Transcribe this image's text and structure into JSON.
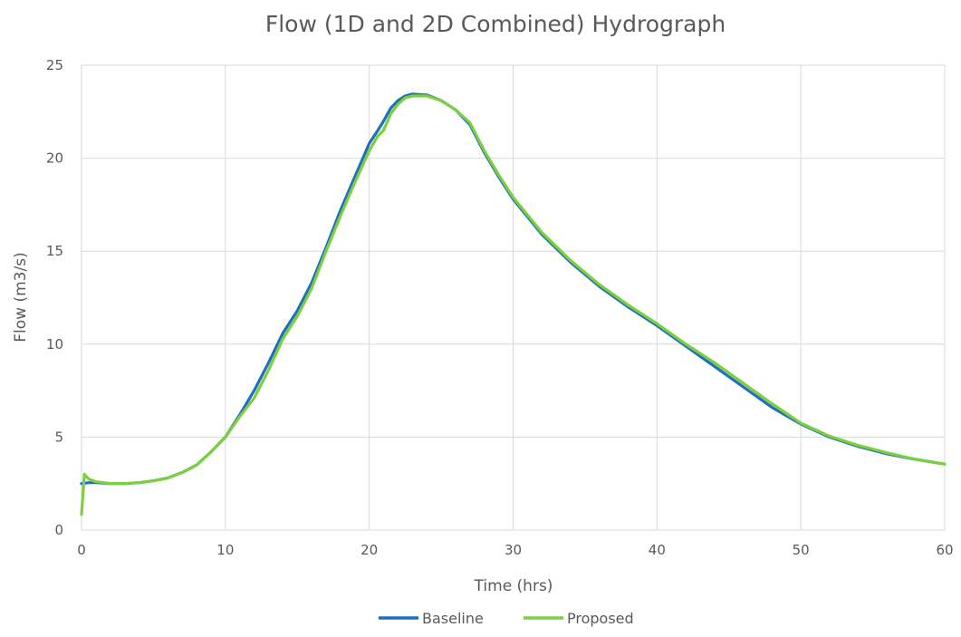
{
  "chart_data": {
    "type": "line",
    "title": "Flow (1D and 2D Combined) Hydrograph",
    "xlabel": "Time (hrs)",
    "ylabel": "Flow (m3/s)",
    "xlim": [
      0,
      60
    ],
    "ylim": [
      0,
      25
    ],
    "xticks": [
      0,
      10,
      20,
      30,
      40,
      50,
      60
    ],
    "yticks": [
      0,
      5,
      10,
      15,
      20,
      25
    ],
    "xtick_labels": [
      "0",
      "10",
      "20",
      "30",
      "40",
      "50",
      "60"
    ],
    "ytick_labels": [
      "0",
      "5",
      "10",
      "15",
      "20",
      "25"
    ],
    "grid": true,
    "legend_position": "bottom",
    "series": [
      {
        "name": "Baseline",
        "color": "#1f6fbf",
        "points": [
          [
            0,
            2.5
          ],
          [
            0.5,
            2.55
          ],
          [
            1,
            2.55
          ],
          [
            2,
            2.5
          ],
          [
            3,
            2.5
          ],
          [
            4,
            2.55
          ],
          [
            5,
            2.65
          ],
          [
            6,
            2.8
          ],
          [
            7,
            3.1
          ],
          [
            8,
            3.5
          ],
          [
            9,
            4.2
          ],
          [
            10,
            5.0
          ],
          [
            11,
            6.2
          ],
          [
            12,
            7.5
          ],
          [
            13,
            9.0
          ],
          [
            14,
            10.6
          ],
          [
            15,
            11.8
          ],
          [
            16,
            13.3
          ],
          [
            17,
            15.2
          ],
          [
            18,
            17.2
          ],
          [
            19,
            19.0
          ],
          [
            20,
            20.8
          ],
          [
            20.6,
            21.5
          ],
          [
            21,
            22.0
          ],
          [
            21.5,
            22.7
          ],
          [
            22,
            23.1
          ],
          [
            22.5,
            23.35
          ],
          [
            23,
            23.45
          ],
          [
            24,
            23.4
          ],
          [
            25,
            23.1
          ],
          [
            26,
            22.6
          ],
          [
            27,
            21.8
          ],
          [
            28,
            20.3
          ],
          [
            29,
            19.0
          ],
          [
            30,
            17.8
          ],
          [
            32,
            15.9
          ],
          [
            34,
            14.4
          ],
          [
            36,
            13.1
          ],
          [
            38,
            12.0
          ],
          [
            40,
            11.0
          ],
          [
            42,
            9.9
          ],
          [
            44,
            8.8
          ],
          [
            46,
            7.7
          ],
          [
            48,
            6.6
          ],
          [
            50,
            5.7
          ],
          [
            52,
            5.0
          ],
          [
            54,
            4.5
          ],
          [
            56,
            4.1
          ],
          [
            58,
            3.8
          ],
          [
            60,
            3.55
          ]
        ]
      },
      {
        "name": "Proposed",
        "color": "#7ccf3f",
        "points": [
          [
            0,
            0.85
          ],
          [
            0.2,
            3.0
          ],
          [
            0.5,
            2.75
          ],
          [
            1,
            2.6
          ],
          [
            2,
            2.5
          ],
          [
            3,
            2.5
          ],
          [
            4,
            2.55
          ],
          [
            5,
            2.65
          ],
          [
            6,
            2.8
          ],
          [
            7,
            3.1
          ],
          [
            8,
            3.5
          ],
          [
            9,
            4.2
          ],
          [
            10,
            5.0
          ],
          [
            11,
            6.1
          ],
          [
            12,
            7.1
          ],
          [
            13,
            8.6
          ],
          [
            14,
            10.3
          ],
          [
            15,
            11.5
          ],
          [
            16,
            13.0
          ],
          [
            17,
            15.0
          ],
          [
            18,
            16.9
          ],
          [
            19,
            18.7
          ],
          [
            20,
            20.4
          ],
          [
            20.6,
            21.2
          ],
          [
            21,
            21.5
          ],
          [
            21.5,
            22.4
          ],
          [
            22,
            22.9
          ],
          [
            22.5,
            23.25
          ],
          [
            23,
            23.35
          ],
          [
            24,
            23.35
          ],
          [
            25,
            23.1
          ],
          [
            26,
            22.6
          ],
          [
            27,
            21.9
          ],
          [
            28,
            20.4
          ],
          [
            29,
            19.1
          ],
          [
            30,
            17.9
          ],
          [
            32,
            16.0
          ],
          [
            34,
            14.5
          ],
          [
            36,
            13.2
          ],
          [
            38,
            12.1
          ],
          [
            40,
            11.1
          ],
          [
            42,
            10.0
          ],
          [
            44,
            9.0
          ],
          [
            46,
            7.9
          ],
          [
            48,
            6.8
          ],
          [
            50,
            5.75
          ],
          [
            52,
            5.05
          ],
          [
            54,
            4.55
          ],
          [
            56,
            4.15
          ],
          [
            58,
            3.8
          ],
          [
            60,
            3.55
          ]
        ]
      }
    ]
  }
}
